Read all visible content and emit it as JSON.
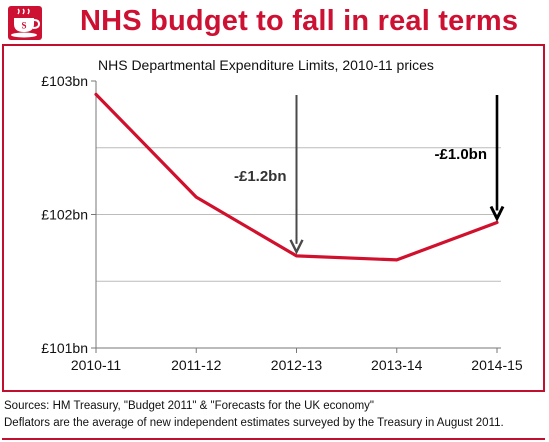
{
  "header": {
    "title": "NHS budget to fall in real terms",
    "logo_icon": "teacup-icon",
    "accent_color": "#cc1133"
  },
  "chart_data": {
    "type": "line",
    "title": "NHS Departmental Expenditure Limits, 2010-11 prices",
    "categories": [
      "2010-11",
      "2011-12",
      "2012-13",
      "2013-14",
      "2014-15"
    ],
    "series": [
      {
        "values": [
          102.9,
          102.13,
          101.69,
          101.66,
          101.94
        ],
        "color": "#d0102c"
      }
    ],
    "ylim": [
      101,
      103
    ],
    "yticks": [
      {
        "value": 103,
        "label": "£103bn"
      },
      {
        "value": 102,
        "label": "£102bn"
      },
      {
        "value": 101,
        "label": "£101bn"
      }
    ],
    "grid_values": [
      102.5,
      102,
      101.5
    ],
    "grid": true,
    "annotations": [
      {
        "text": "-£1.2bn",
        "category": "2012-13",
        "arrow_from": 103,
        "arrow_to": 101.69,
        "style": "grey"
      },
      {
        "text": "-£1.0bn",
        "category": "2014-15",
        "arrow_from": 103,
        "arrow_to": 101.94,
        "style": "black"
      }
    ]
  },
  "footer": {
    "line1": "Sources: HM Treasury, \"Budget 2011\" & \"Forecasts for the UK economy\"",
    "line2": "Deflators are the average of new independent estimates surveyed by the Treasury in August 2011."
  }
}
